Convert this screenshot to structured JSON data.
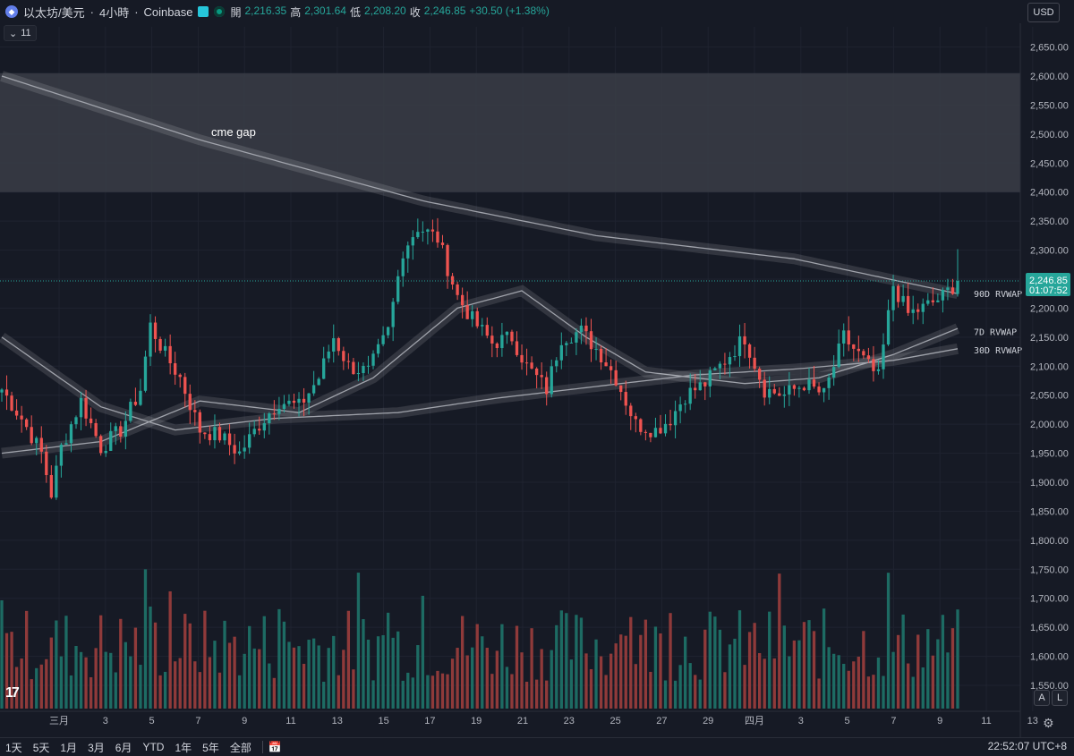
{
  "header": {
    "symbol": "以太坊/美元",
    "timeframe": "4小時",
    "exchange": "Coinbase",
    "ohlc": [
      {
        "label": "開",
        "value": "2,216.35"
      },
      {
        "label": "高",
        "value": "2,301.64"
      },
      {
        "label": "低",
        "value": "2,208.20"
      },
      {
        "label": "收",
        "value": "2,246.85"
      }
    ],
    "change": "+30.50 (+1.38%)",
    "collapse_count": "11",
    "currency": "USD"
  },
  "colors": {
    "background": "#161a25",
    "up": "#26a69a",
    "down": "#ef5350",
    "rvwap": "#a0a3ab",
    "gap_zone": "#3a3d46",
    "price_line": "#26a69a"
  },
  "price_tag": {
    "price": "2,246.85",
    "countdown": "01:07:52"
  },
  "rvwap_labels": [
    "90D RVWAP",
    "7D RVWAP",
    "30D RVWAP"
  ],
  "annotation": "cme gap",
  "bottom_bar": {
    "ranges": [
      "1天",
      "5天",
      "1月",
      "3月",
      "6月",
      "YTD",
      "1年",
      "5年",
      "全部"
    ],
    "clock": "22:52:07 UTC+8"
  },
  "scale_buttons": {
    "auto": "A",
    "log": "L"
  },
  "chart_data": {
    "type": "candlestick",
    "y_ticks": [
      1550,
      1600,
      1650,
      1700,
      1750,
      1800,
      1850,
      1900,
      1950,
      2000,
      2050,
      2100,
      2150,
      2200,
      2250,
      2300,
      2350,
      2400,
      2450,
      2500,
      2550,
      2600,
      2650
    ],
    "ylim": [
      1520,
      2680
    ],
    "x_tick_labels": [
      "三月",
      "3",
      "5",
      "7",
      "9",
      "11",
      "13",
      "15",
      "17",
      "19",
      "21",
      "23",
      "25",
      "27",
      "29",
      "四月",
      "3",
      "5",
      "7",
      "9",
      "11",
      "13"
    ],
    "cme_gap": [
      2400,
      2605
    ],
    "last_price": 2246.85,
    "anchors_close": [
      [
        0,
        2060
      ],
      [
        4,
        2010
      ],
      [
        8,
        1950
      ],
      [
        10,
        1880
      ],
      [
        12,
        1960
      ],
      [
        16,
        2040
      ],
      [
        20,
        1960
      ],
      [
        24,
        1990
      ],
      [
        28,
        2060
      ],
      [
        30,
        2170
      ],
      [
        33,
        2120
      ],
      [
        36,
        2080
      ],
      [
        40,
        1990
      ],
      [
        44,
        1980
      ],
      [
        48,
        1950
      ],
      [
        52,
        2000
      ],
      [
        56,
        2040
      ],
      [
        60,
        2030
      ],
      [
        64,
        2080
      ],
      [
        67,
        2150
      ],
      [
        70,
        2100
      ],
      [
        74,
        2090
      ],
      [
        78,
        2160
      ],
      [
        81,
        2300
      ],
      [
        84,
        2340
      ],
      [
        88,
        2320
      ],
      [
        92,
        2220
      ],
      [
        95,
        2180
      ],
      [
        99,
        2140
      ],
      [
        103,
        2150
      ],
      [
        106,
        2100
      ],
      [
        110,
        2060
      ],
      [
        113,
        2150
      ],
      [
        117,
        2160
      ],
      [
        121,
        2120
      ],
      [
        124,
        2080
      ],
      [
        128,
        2000
      ],
      [
        132,
        1990
      ],
      [
        135,
        2010
      ],
      [
        138,
        2050
      ],
      [
        142,
        2070
      ],
      [
        146,
        2110
      ],
      [
        150,
        2150
      ],
      [
        154,
        2060
      ],
      [
        158,
        2050
      ],
      [
        162,
        2070
      ],
      [
        166,
        2050
      ],
      [
        170,
        2150
      ],
      [
        174,
        2110
      ],
      [
        177,
        2080
      ],
      [
        180,
        2240
      ],
      [
        183,
        2190
      ],
      [
        186,
        2200
      ],
      [
        190,
        2220
      ],
      [
        193,
        2246.85
      ]
    ],
    "vwap90": [
      [
        0,
        2600
      ],
      [
        40,
        2490
      ],
      [
        85,
        2385
      ],
      [
        120,
        2325
      ],
      [
        160,
        2285
      ],
      [
        193,
        2225
      ]
    ],
    "vwap7": [
      [
        0,
        1950
      ],
      [
        20,
        1970
      ],
      [
        40,
        2040
      ],
      [
        60,
        2020
      ],
      [
        75,
        2080
      ],
      [
        92,
        2200
      ],
      [
        105,
        2230
      ],
      [
        118,
        2150
      ],
      [
        130,
        2090
      ],
      [
        150,
        2070
      ],
      [
        165,
        2080
      ],
      [
        180,
        2120
      ],
      [
        193,
        2165
      ]
    ],
    "vwap30": [
      [
        0,
        2150
      ],
      [
        20,
        2030
      ],
      [
        35,
        1990
      ],
      [
        55,
        2010
      ],
      [
        80,
        2020
      ],
      [
        100,
        2045
      ],
      [
        120,
        2065
      ],
      [
        140,
        2085
      ],
      [
        160,
        2095
      ],
      [
        180,
        2110
      ],
      [
        193,
        2130
      ]
    ],
    "volumes_seed": 7
  }
}
